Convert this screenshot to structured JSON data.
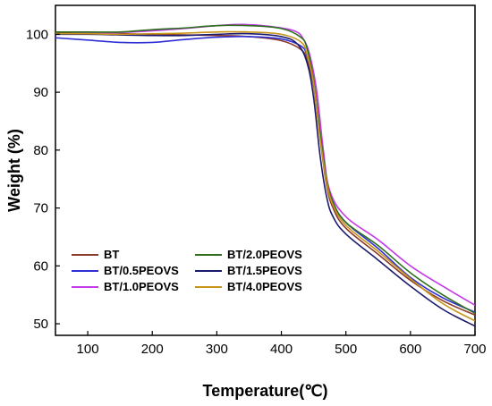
{
  "chart_data": {
    "type": "line",
    "title": "",
    "xlabel": "Temperature(℃)",
    "ylabel": "Weight (%)",
    "xlim": [
      50,
      700
    ],
    "ylim": [
      48,
      105
    ],
    "x_ticks": [
      100,
      200,
      300,
      400,
      500,
      600,
      700
    ],
    "y_ticks": [
      50,
      60,
      70,
      80,
      90,
      100
    ],
    "grid": false,
    "legend_position": "bottom-left",
    "series": [
      {
        "name": "BT",
        "color": "#8b3a2a",
        "points": [
          [
            50,
            100.3
          ],
          [
            100,
            100.2
          ],
          [
            150,
            100.1
          ],
          [
            200,
            100.0
          ],
          [
            250,
            99.9
          ],
          [
            300,
            99.8
          ],
          [
            350,
            99.6
          ],
          [
            400,
            98.9
          ],
          [
            430,
            97.4
          ],
          [
            440,
            95.5
          ],
          [
            450,
            91
          ],
          [
            460,
            82
          ],
          [
            470,
            74
          ],
          [
            480,
            70
          ],
          [
            500,
            66.5
          ],
          [
            550,
            62
          ],
          [
            600,
            57.5
          ],
          [
            650,
            54
          ],
          [
            700,
            51.5
          ]
        ]
      },
      {
        "name": "BT/0.5PEOVS",
        "color": "#2f2fd8",
        "points": [
          [
            50,
            99.4
          ],
          [
            100,
            99.0
          ],
          [
            150,
            98.6
          ],
          [
            200,
            98.6
          ],
          [
            250,
            99.1
          ],
          [
            300,
            99.5
          ],
          [
            350,
            99.6
          ],
          [
            400,
            99.2
          ],
          [
            430,
            98.0
          ],
          [
            440,
            96.3
          ],
          [
            450,
            92
          ],
          [
            460,
            83
          ],
          [
            470,
            75
          ],
          [
            480,
            71
          ],
          [
            500,
            67.5
          ],
          [
            550,
            63
          ],
          [
            600,
            58
          ],
          [
            650,
            54.5
          ],
          [
            700,
            52.0
          ]
        ]
      },
      {
        "name": "BT/1.0PEOVS",
        "color": "#c33be6",
        "points": [
          [
            50,
            100.0
          ],
          [
            100,
            100.2
          ],
          [
            150,
            100.3
          ],
          [
            200,
            100.6
          ],
          [
            250,
            101.0
          ],
          [
            300,
            101.5
          ],
          [
            340,
            101.7
          ],
          [
            380,
            101.4
          ],
          [
            420,
            100.6
          ],
          [
            435,
            99.0
          ],
          [
            445,
            96.0
          ],
          [
            455,
            90
          ],
          [
            465,
            80
          ],
          [
            475,
            73
          ],
          [
            500,
            68.5
          ],
          [
            550,
            64.5
          ],
          [
            600,
            60
          ],
          [
            650,
            56.5
          ],
          [
            700,
            53.2
          ]
        ]
      },
      {
        "name": "BT/2.0PEOVS",
        "color": "#2e6e1d",
        "points": [
          [
            50,
            100.4
          ],
          [
            100,
            100.4
          ],
          [
            150,
            100.4
          ],
          [
            200,
            100.8
          ],
          [
            250,
            101.1
          ],
          [
            300,
            101.5
          ],
          [
            350,
            101.5
          ],
          [
            400,
            101.0
          ],
          [
            430,
            99.5
          ],
          [
            440,
            97.5
          ],
          [
            450,
            92
          ],
          [
            460,
            83
          ],
          [
            470,
            75
          ],
          [
            480,
            71
          ],
          [
            500,
            67.5
          ],
          [
            550,
            63.5
          ],
          [
            600,
            58.8
          ],
          [
            650,
            55
          ],
          [
            700,
            51.8
          ]
        ]
      },
      {
        "name": "BT/1.5PEOVS",
        "color": "#1c1a6e",
        "points": [
          [
            50,
            100.0
          ],
          [
            100,
            100.0
          ],
          [
            150,
            99.9
          ],
          [
            200,
            99.8
          ],
          [
            250,
            99.8
          ],
          [
            300,
            100.0
          ],
          [
            350,
            100.1
          ],
          [
            400,
            99.6
          ],
          [
            425,
            98.3
          ],
          [
            440,
            95.0
          ],
          [
            450,
            89
          ],
          [
            460,
            79
          ],
          [
            470,
            72
          ],
          [
            480,
            68.5
          ],
          [
            500,
            65.5
          ],
          [
            550,
            61
          ],
          [
            600,
            56.5
          ],
          [
            650,
            52.5
          ],
          [
            700,
            49.6
          ]
        ]
      },
      {
        "name": "BT/4.0PEOVS",
        "color": "#c8951a",
        "points": [
          [
            50,
            100.1
          ],
          [
            100,
            100.1
          ],
          [
            150,
            100.0
          ],
          [
            200,
            100.1
          ],
          [
            250,
            100.2
          ],
          [
            300,
            100.4
          ],
          [
            350,
            100.4
          ],
          [
            400,
            100.0
          ],
          [
            430,
            98.7
          ],
          [
            440,
            96.5
          ],
          [
            450,
            91.5
          ],
          [
            460,
            82
          ],
          [
            470,
            74.5
          ],
          [
            480,
            70.5
          ],
          [
            500,
            67
          ],
          [
            550,
            62.5
          ],
          [
            600,
            57.8
          ],
          [
            650,
            53.5
          ],
          [
            700,
            50.5
          ]
        ]
      }
    ]
  }
}
